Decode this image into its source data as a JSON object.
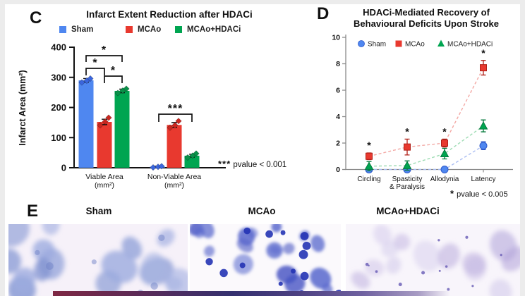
{
  "panels": {
    "c": {
      "label": "C"
    },
    "d": {
      "label": "D"
    },
    "e": {
      "label": "E"
    }
  },
  "colors": {
    "sham": "#4f87f0",
    "mcao": "#e8392f",
    "hdaci": "#00a551",
    "axis_gray": "#8a8a8a"
  },
  "chart_data": [
    {
      "type": "bar",
      "panel": "C",
      "title": "Infarct Extent Reduction after HDACi",
      "ylabel": "Infarct Area (mm²)",
      "xlabel": "",
      "ylim": [
        0,
        400
      ],
      "yticks": [
        0,
        100,
        200,
        300,
        400
      ],
      "grid": false,
      "legend_position": "top",
      "categories": [
        "Viable Area\n(mm²)",
        "Non-Viable Area\n(mm²)"
      ],
      "series": [
        {
          "name": "Sham",
          "color": "#4f87f0",
          "values": [
            290,
            3
          ],
          "errors": [
            6,
            2
          ],
          "points": [
            [
              283,
              289,
              296
            ],
            [
              1,
              3,
              5
            ]
          ]
        },
        {
          "name": "MCAo",
          "color": "#e8392f",
          "values": [
            152,
            142
          ],
          "errors": [
            9,
            8
          ],
          "points": [
            [
              141,
              153,
              166
            ],
            [
              133,
              141,
              155
            ]
          ]
        },
        {
          "name": "MCAo+HDACi",
          "color": "#00a551",
          "values": [
            255,
            40
          ],
          "errors": [
            6,
            5
          ],
          "points": [
            [
              248,
              256,
              262
            ],
            [
              34,
              40,
              47
            ]
          ]
        }
      ],
      "significance": [
        {
          "category": "Viable Area (mm²)",
          "groups": [
            "Sham",
            "MCAo"
          ],
          "label": "*"
        },
        {
          "category": "Viable Area (mm²)",
          "groups": [
            "MCAo",
            "MCAo+HDACi"
          ],
          "label": "*"
        },
        {
          "category": "Viable Area (mm²)",
          "groups": [
            "Sham",
            "MCAo+HDACi"
          ],
          "label": "*"
        },
        {
          "category": "Non-Viable Area (mm²)",
          "groups": [
            "Sham",
            "MCAo+HDACi"
          ],
          "label": "***"
        }
      ],
      "footnote_stars": "***",
      "footnote_text": "pvalue < 0.001"
    },
    {
      "type": "line",
      "panel": "D",
      "title": "HDACi-Mediated Recovery of Behavioural Deficits Upon Stroke",
      "title_lines": [
        "HDACi-Mediated Recovery of",
        "Behavioural Deficits Upon Stroke"
      ],
      "ylim": [
        0,
        10
      ],
      "yticks": [
        0,
        2,
        4,
        6,
        8,
        10
      ],
      "grid": false,
      "line_style": "dashed",
      "legend_position": "top-inside",
      "categories": [
        "Circling",
        "Spasticity\n& Paralysis",
        "Allodynia",
        "Latency"
      ],
      "series": [
        {
          "name": "Sham",
          "marker": "circle",
          "color": "#4f87f0",
          "values": [
            0,
            0,
            0,
            1.8
          ],
          "errors": [
            0.05,
            0.05,
            0.05,
            0.3
          ]
        },
        {
          "name": "MCAo",
          "marker": "square",
          "color": "#e8392f",
          "values": [
            1.0,
            1.7,
            2.0,
            7.7
          ],
          "errors": [
            0.25,
            0.6,
            0.3,
            0.55
          ]
        },
        {
          "name": "MCAo+HDACi",
          "marker": "triangle",
          "color": "#00a551",
          "values": [
            0.25,
            0.3,
            1.2,
            3.3
          ],
          "errors": [
            0.35,
            0.35,
            0.4,
            0.45
          ]
        }
      ],
      "significance_markers": [
        {
          "category": "Circling",
          "series": "MCAo",
          "label": "*"
        },
        {
          "category": "Spasticity & Paralysis",
          "series": "MCAo",
          "label": "*"
        },
        {
          "category": "Allodynia",
          "series": "MCAo",
          "label": "*"
        },
        {
          "category": "Latency",
          "series": "MCAo",
          "label": "*"
        }
      ],
      "footnote_stars": "*",
      "footnote_text": "pvalue < 0.005"
    }
  ],
  "panel_e": {
    "images": [
      {
        "label": "Sham"
      },
      {
        "label": "MCAo"
      },
      {
        "label": "MCAo+HDACi"
      }
    ]
  }
}
